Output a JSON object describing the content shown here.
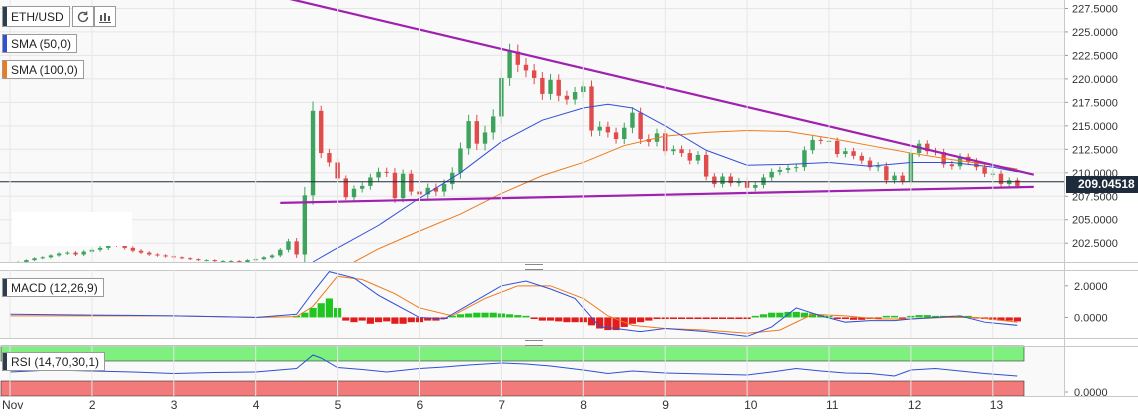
{
  "toolbar": {
    "symbol": "ETH/USD",
    "reload_icon": "reload-icon",
    "bar_type_icon": "candles-icon"
  },
  "indicators": {
    "sma50": {
      "label": "SMA (50,0)",
      "color": "#2f4fd6"
    },
    "sma100": {
      "label": "SMA (100,0)",
      "color": "#f07a1a"
    },
    "macd": {
      "label": "MACD (12,26,9)"
    },
    "rsi": {
      "label": "RSI (14,70,30,1)"
    }
  },
  "last_price": "209.04518",
  "colors": {
    "up": "#3da35d",
    "down": "#e04b4b",
    "trend": "#a020b0",
    "macd_line": "#2f4fd6",
    "signal_line": "#f07a1a",
    "hist_up": "#21c521",
    "hist_down": "#e21c1c",
    "rsi_line": "#2f4fd6",
    "overbought_band": "#7df07d",
    "oversold_band": "#f27a7a"
  },
  "chart_data": [
    {
      "type": "candlestick",
      "title": "ETH/USD",
      "ylim": [
        200.5,
        228.4
      ],
      "price_axis_ticks": [
        "227.5000",
        "225.0000",
        "222.5000",
        "220.0000",
        "217.5000",
        "215.0000",
        "212.5000",
        "210.0000",
        "207.5000",
        "205.0000",
        "202.5000"
      ],
      "x_tick_labels": [
        "Nov",
        "2",
        "3",
        "4",
        "5",
        "6",
        "7",
        "8",
        "9",
        "10",
        "11",
        "12",
        "13"
      ],
      "grid": true,
      "x_days": [
        1.0,
        1.1,
        1.2,
        1.3,
        1.4,
        1.5,
        1.6,
        1.7,
        1.8,
        1.9,
        2.0,
        2.1,
        2.2,
        2.3,
        2.4,
        2.5,
        2.6,
        2.7,
        2.8,
        2.9,
        3.0,
        3.1,
        3.2,
        3.3,
        3.4,
        3.5,
        3.6,
        3.7,
        3.8,
        3.9,
        4.0,
        4.1,
        4.2,
        4.3,
        4.4,
        4.5,
        4.6,
        4.7,
        4.8,
        4.9,
        5.0,
        5.1,
        5.2,
        5.3,
        5.4,
        5.5,
        5.6,
        5.7,
        5.8,
        5.9,
        6.0,
        6.1,
        6.2,
        6.3,
        6.4,
        6.5,
        6.6,
        6.7,
        6.8,
        6.9,
        7.0,
        7.1,
        7.2,
        7.3,
        7.4,
        7.5,
        7.6,
        7.7,
        7.8,
        7.9,
        8.0,
        8.1,
        8.2,
        8.3,
        8.4,
        8.5,
        8.6,
        8.7,
        8.8,
        8.9,
        9.0,
        9.1,
        9.2,
        9.3,
        9.4,
        9.5,
        9.6,
        9.7,
        9.8,
        9.9,
        10.0,
        10.1,
        10.2,
        10.3,
        10.4,
        10.5,
        10.6,
        10.7,
        10.8,
        10.9,
        11.0,
        11.1,
        11.2,
        11.3,
        11.4,
        11.5,
        11.6,
        11.7,
        11.8,
        11.9,
        12.0,
        12.1,
        12.2,
        12.3,
        12.4,
        12.5,
        12.6,
        12.7,
        12.8,
        12.9,
        13.0,
        13.1,
        13.2,
        13.3
      ],
      "close": [
        200.4,
        200.5,
        200.7,
        200.9,
        201.0,
        201.2,
        201.4,
        201.5,
        201.3,
        201.6,
        201.8,
        202.0,
        202.4,
        202.3,
        202.0,
        201.7,
        201.5,
        201.3,
        201.2,
        201.1,
        201.0,
        200.9,
        200.8,
        200.7,
        200.7,
        200.6,
        200.6,
        200.6,
        200.5,
        200.7,
        200.8,
        201.0,
        201.2,
        201.8,
        202.7,
        201.3,
        207.6,
        216.6,
        212.1,
        211.1,
        209.4,
        207.4,
        208.3,
        208.6,
        209.5,
        210.1,
        210.0,
        207.3,
        209.9,
        208.0,
        207.7,
        208.4,
        208.0,
        208.8,
        210.0,
        212.6,
        215.5,
        213.1,
        214.3,
        216.0,
        220.1,
        222.9,
        221.5,
        220.9,
        220.1,
        218.4,
        219.9,
        218.2,
        217.8,
        218.6,
        219.2,
        214.5,
        214.9,
        214.3,
        213.6,
        214.8,
        216.4,
        213.6,
        213.3,
        214.2,
        212.3,
        212.5,
        212.1,
        211.3,
        211.9,
        209.6,
        208.8,
        209.6,
        208.9,
        209.1,
        208.4,
        208.7,
        209.5,
        210.1,
        210.3,
        210.5,
        210.6,
        212.4,
        213.5,
        213.4,
        213.4,
        212.0,
        212.3,
        211.8,
        211.3,
        210.6,
        210.7,
        209.2,
        209.7,
        209.1,
        212.1,
        213.1,
        212.3,
        212.2,
        210.9,
        210.7,
        211.7,
        211.2,
        210.6,
        209.9,
        209.9,
        208.8,
        209.2,
        208.6
      ],
      "volatility": [
        0.15,
        0.18,
        0.2,
        0.22,
        0.25,
        0.28,
        0.3,
        0.32,
        0.35,
        0.38,
        0.4,
        0.45,
        0.5,
        0.42,
        0.4,
        0.38,
        0.35,
        0.32,
        0.3,
        0.28,
        0.25,
        0.22,
        0.2,
        0.2,
        0.2,
        0.2,
        0.2,
        0.2,
        0.2,
        0.2,
        0.2,
        0.25,
        0.3,
        0.4,
        0.6,
        0.8,
        2.0,
        2.2,
        1.2,
        1.0,
        0.8,
        0.7,
        0.8,
        0.9,
        0.9,
        1.0,
        1.0,
        1.1,
        1.0,
        0.9,
        0.9,
        1.0,
        1.0,
        1.1,
        1.3,
        1.4,
        1.5,
        1.5,
        1.6,
        1.7,
        1.8,
        1.9,
        1.7,
        1.6,
        1.5,
        1.4,
        1.4,
        1.3,
        1.2,
        1.2,
        1.3,
        1.4,
        1.3,
        1.2,
        1.1,
        1.2,
        1.3,
        1.2,
        1.1,
        1.1,
        1.0,
        0.9,
        0.9,
        0.9,
        0.9,
        0.9,
        0.8,
        0.8,
        0.8,
        0.8,
        0.8,
        0.8,
        0.8,
        0.8,
        0.8,
        0.8,
        0.9,
        0.9,
        0.9,
        0.8,
        0.8,
        0.8,
        0.8,
        0.8,
        0.8,
        0.8,
        1.0,
        0.9,
        0.8,
        0.8,
        0.9,
        0.9,
        0.8,
        0.8,
        0.8,
        0.8,
        0.8,
        0.8,
        0.8,
        0.8,
        0.9,
        0.8,
        0.7,
        0.6
      ],
      "sma50": [
        [
          4.7,
          200.5
        ],
        [
          5.0,
          202.0
        ],
        [
          5.5,
          204.4
        ],
        [
          6.0,
          207.3
        ],
        [
          6.5,
          210.0
        ],
        [
          7.0,
          213.3
        ],
        [
          7.5,
          215.6
        ],
        [
          8.0,
          216.9
        ],
        [
          8.3,
          217.3
        ],
        [
          8.6,
          216.9
        ],
        [
          9.0,
          215.0
        ],
        [
          9.5,
          212.4
        ],
        [
          10.0,
          210.8
        ],
        [
          10.5,
          210.9
        ],
        [
          11.0,
          211.1
        ],
        [
          11.5,
          210.7
        ],
        [
          12.0,
          211.1
        ],
        [
          12.5,
          211.1
        ],
        [
          13.0,
          210.6
        ],
        [
          13.3,
          210.1
        ]
      ],
      "sma100": [
        [
          5.2,
          200.5
        ],
        [
          5.5,
          201.9
        ],
        [
          6.0,
          203.8
        ],
        [
          6.5,
          205.6
        ],
        [
          7.0,
          207.8
        ],
        [
          7.5,
          209.7
        ],
        [
          8.0,
          211.1
        ],
        [
          8.5,
          212.9
        ],
        [
          9.0,
          213.9
        ],
        [
          9.5,
          214.3
        ],
        [
          10.0,
          214.5
        ],
        [
          10.5,
          214.4
        ],
        [
          11.0,
          213.7
        ],
        [
          11.5,
          212.9
        ],
        [
          12.0,
          212.1
        ],
        [
          12.5,
          211.4
        ],
        [
          13.0,
          210.8
        ],
        [
          13.3,
          210.4
        ]
      ],
      "trendlines": [
        {
          "from": [
            3.5,
            230.4
          ],
          "to": [
            13.5,
            209.8
          ]
        },
        {
          "from": [
            4.3,
            206.8
          ],
          "to": [
            13.5,
            208.5
          ]
        }
      ],
      "last_price": 209.04518
    },
    {
      "type": "macd",
      "title": "MACD (12,26,9)",
      "axis_ticks": [
        "2.0000",
        "0.0000"
      ],
      "ylim": [
        -1.3,
        3.0
      ],
      "macd": [
        [
          1.0,
          0.2
        ],
        [
          2.0,
          0.15
        ],
        [
          3.0,
          0.1
        ],
        [
          4.0,
          0.0
        ],
        [
          4.5,
          0.2
        ],
        [
          4.7,
          1.6
        ],
        [
          4.9,
          2.9
        ],
        [
          5.2,
          2.5
        ],
        [
          5.5,
          1.4
        ],
        [
          6.0,
          0.0
        ],
        [
          6.3,
          -0.1
        ],
        [
          6.6,
          0.8
        ],
        [
          7.0,
          2.0
        ],
        [
          7.3,
          2.3
        ],
        [
          7.6,
          1.8
        ],
        [
          7.9,
          1.2
        ],
        [
          8.2,
          -0.6
        ],
        [
          8.4,
          -0.7
        ],
        [
          8.7,
          -0.9
        ],
        [
          9.0,
          -0.7
        ],
        [
          9.5,
          -0.9
        ],
        [
          10.0,
          -1.2
        ],
        [
          10.3,
          -0.6
        ],
        [
          10.6,
          0.6
        ],
        [
          10.9,
          0.1
        ],
        [
          11.2,
          -0.3
        ],
        [
          11.5,
          -0.2
        ],
        [
          11.8,
          -0.2
        ],
        [
          12.0,
          -0.1
        ],
        [
          12.3,
          0.0
        ],
        [
          12.6,
          0.1
        ],
        [
          12.9,
          -0.3
        ],
        [
          13.3,
          -0.5
        ]
      ],
      "signal": [
        [
          1.0,
          0.1
        ],
        [
          2.0,
          0.1
        ],
        [
          3.0,
          0.1
        ],
        [
          4.0,
          0.0
        ],
        [
          4.5,
          0.05
        ],
        [
          4.7,
          0.7
        ],
        [
          5.0,
          2.6
        ],
        [
          5.3,
          2.4
        ],
        [
          5.7,
          1.5
        ],
        [
          6.0,
          0.6
        ],
        [
          6.4,
          0.1
        ],
        [
          6.8,
          1.2
        ],
        [
          7.2,
          2.0
        ],
        [
          7.6,
          2.0
        ],
        [
          8.0,
          1.2
        ],
        [
          8.3,
          0.1
        ],
        [
          8.6,
          -0.5
        ],
        [
          9.0,
          -0.7
        ],
        [
          9.5,
          -0.8
        ],
        [
          10.0,
          -1.0
        ],
        [
          10.4,
          -0.8
        ],
        [
          10.8,
          0.2
        ],
        [
          11.2,
          0.1
        ],
        [
          11.6,
          -0.1
        ],
        [
          12.0,
          -0.1
        ],
        [
          12.4,
          0.0
        ],
        [
          12.8,
          0.0
        ],
        [
          13.3,
          -0.3
        ]
      ],
      "histogram": [
        [
          4.5,
          0.1
        ],
        [
          4.6,
          0.3
        ],
        [
          4.7,
          0.6
        ],
        [
          4.8,
          0.9
        ],
        [
          4.9,
          1.2
        ],
        [
          5.0,
          0.6
        ],
        [
          5.1,
          -0.2
        ],
        [
          5.2,
          -0.3
        ],
        [
          5.3,
          -0.2
        ],
        [
          5.4,
          -0.4
        ],
        [
          5.5,
          -0.3
        ],
        [
          5.6,
          -0.25
        ],
        [
          5.7,
          -0.4
        ],
        [
          5.8,
          -0.4
        ],
        [
          5.9,
          -0.3
        ],
        [
          6.0,
          -0.3
        ],
        [
          6.1,
          -0.2
        ],
        [
          6.2,
          -0.2
        ],
        [
          6.3,
          -0.1
        ],
        [
          6.4,
          0.1
        ],
        [
          6.5,
          0.2
        ],
        [
          6.6,
          0.25
        ],
        [
          6.7,
          0.3
        ],
        [
          6.8,
          0.3
        ],
        [
          6.9,
          0.3
        ],
        [
          7.0,
          0.25
        ],
        [
          7.1,
          0.2
        ],
        [
          7.2,
          0.15
        ],
        [
          7.3,
          0.1
        ],
        [
          7.4,
          -0.1
        ],
        [
          7.5,
          -0.2
        ],
        [
          7.6,
          -0.2
        ],
        [
          7.7,
          -0.25
        ],
        [
          7.8,
          -0.3
        ],
        [
          7.9,
          -0.3
        ],
        [
          8.0,
          -0.3
        ],
        [
          8.1,
          -0.5
        ],
        [
          8.2,
          -0.7
        ],
        [
          8.3,
          -0.8
        ],
        [
          8.4,
          -0.8
        ],
        [
          8.5,
          -0.6
        ],
        [
          8.6,
          -0.4
        ],
        [
          8.7,
          -0.3
        ],
        [
          8.8,
          -0.2
        ],
        [
          8.9,
          -0.1
        ],
        [
          9.0,
          -0.1
        ],
        [
          9.1,
          -0.1
        ],
        [
          9.2,
          -0.1
        ],
        [
          9.3,
          -0.1
        ],
        [
          9.4,
          -0.1
        ],
        [
          9.5,
          -0.1
        ],
        [
          9.6,
          -0.1
        ],
        [
          9.7,
          -0.1
        ],
        [
          9.8,
          -0.1
        ],
        [
          9.9,
          -0.1
        ],
        [
          10.0,
          -0.1
        ],
        [
          10.1,
          0.1
        ],
        [
          10.2,
          0.2
        ],
        [
          10.3,
          0.3
        ],
        [
          10.4,
          0.3
        ],
        [
          10.5,
          0.35
        ],
        [
          10.6,
          0.35
        ],
        [
          10.7,
          0.3
        ],
        [
          10.8,
          0.25
        ],
        [
          10.9,
          0.15
        ],
        [
          11.0,
          0.1
        ],
        [
          11.1,
          -0.1
        ],
        [
          11.2,
          -0.1
        ],
        [
          11.3,
          -0.15
        ],
        [
          11.4,
          -0.15
        ],
        [
          11.5,
          -0.1
        ],
        [
          11.6,
          -0.1
        ],
        [
          11.7,
          0.1
        ],
        [
          11.8,
          0.1
        ],
        [
          11.9,
          -0.1
        ],
        [
          12.0,
          0.1
        ],
        [
          12.1,
          0.15
        ],
        [
          12.2,
          0.15
        ],
        [
          12.3,
          0.1
        ],
        [
          12.4,
          0.1
        ],
        [
          12.5,
          0.1
        ],
        [
          12.6,
          0.1
        ],
        [
          12.7,
          0.1
        ],
        [
          12.8,
          -0.05
        ],
        [
          12.9,
          -0.1
        ],
        [
          13.0,
          -0.15
        ],
        [
          13.1,
          -0.2
        ],
        [
          13.2,
          -0.2
        ],
        [
          13.3,
          -0.25
        ]
      ]
    },
    {
      "type": "rsi",
      "title": "RSI (14,70,30,1)",
      "axis_ticks": [
        "0.0000"
      ],
      "ylim": [
        0,
        100
      ],
      "overbought": 70,
      "oversold": 30,
      "rsi": [
        [
          1.0,
          48
        ],
        [
          1.5,
          52
        ],
        [
          2.0,
          50
        ],
        [
          2.5,
          48
        ],
        [
          3.0,
          45
        ],
        [
          3.5,
          47
        ],
        [
          4.0,
          48
        ],
        [
          4.5,
          55
        ],
        [
          4.7,
          82
        ],
        [
          4.8,
          76
        ],
        [
          5.0,
          57
        ],
        [
          5.3,
          53
        ],
        [
          5.6,
          48
        ],
        [
          6.0,
          55
        ],
        [
          6.3,
          58
        ],
        [
          6.6,
          62
        ],
        [
          7.0,
          66
        ],
        [
          7.3,
          64
        ],
        [
          7.6,
          60
        ],
        [
          8.0,
          52
        ],
        [
          8.3,
          45
        ],
        [
          8.6,
          50
        ],
        [
          9.0,
          46
        ],
        [
          9.5,
          44
        ],
        [
          10.0,
          42
        ],
        [
          10.3,
          48
        ],
        [
          10.6,
          55
        ],
        [
          10.9,
          50
        ],
        [
          11.2,
          46
        ],
        [
          11.5,
          45
        ],
        [
          11.8,
          40
        ],
        [
          12.0,
          52
        ],
        [
          12.3,
          55
        ],
        [
          12.6,
          50
        ],
        [
          12.9,
          45
        ],
        [
          13.3,
          40
        ]
      ]
    }
  ]
}
